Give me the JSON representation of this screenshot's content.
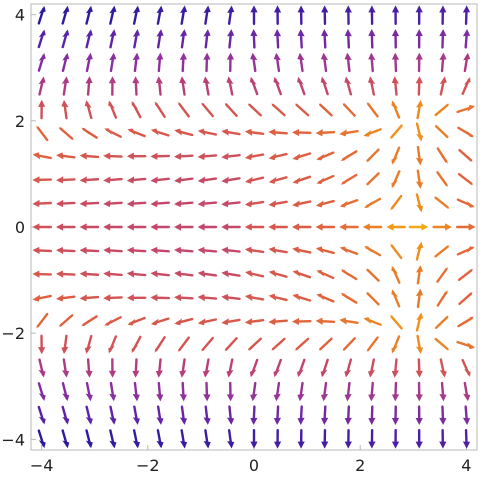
{
  "chart_data": {
    "type": "vector-field",
    "title": "",
    "xlabel": "",
    "ylabel": "",
    "xlim": [
      -4.2,
      4.2
    ],
    "ylim": [
      -4.2,
      4.2
    ],
    "grid": false,
    "x_ticks": [
      -4,
      -2,
      0,
      2,
      4
    ],
    "y_ticks": [
      -4,
      -2,
      0,
      2,
      4
    ],
    "x_tick_labels": [
      "−4",
      "−2",
      "0",
      "2",
      "4"
    ],
    "y_tick_labels": [
      "−4",
      "−2",
      "0",
      "2",
      "4"
    ],
    "field": "(x^2 - y^2 - 10 + (x^2 - y^2)*... , 2xy ...) sampled on a 19x19 grid",
    "grid_range": [
      -4,
      4
    ],
    "grid_count": 19,
    "colormap": [
      "#2b1a9e",
      "#5a22a8",
      "#8a2fa0",
      "#b83d7c",
      "#e0603e",
      "#f29a14",
      "#f6c40c"
    ],
    "low_speed_color": "#f6c40c",
    "high_speed_color": "#2b1a9e"
  }
}
